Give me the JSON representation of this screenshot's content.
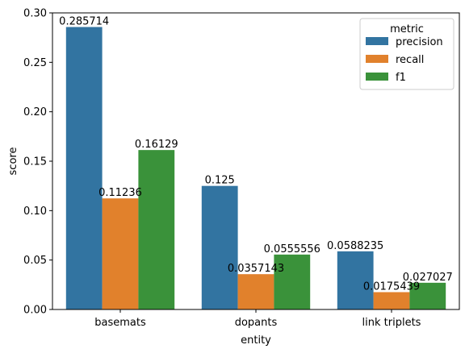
{
  "chart_data": {
    "type": "bar",
    "xlabel": "entity",
    "ylabel": "score",
    "ylim": [
      0,
      0.3
    ],
    "yticks": [
      "0.00",
      "0.05",
      "0.10",
      "0.15",
      "0.20",
      "0.25",
      "0.30"
    ],
    "yticks_values": [
      0,
      0.05,
      0.1,
      0.15,
      0.2,
      0.25,
      0.3
    ],
    "categories": [
      "basemats",
      "dopants",
      "link triplets"
    ],
    "legend": {
      "title": "metric",
      "placement": "top-right"
    },
    "grid": false,
    "series": [
      {
        "name": "precision",
        "color": "#3274a1",
        "values": [
          0.285714,
          0.125,
          0.0588235
        ],
        "labels": [
          "0.285714",
          "0.125",
          "0.0588235"
        ]
      },
      {
        "name": "recall",
        "color": "#e1812c",
        "values": [
          0.11236,
          0.0357143,
          0.0175439
        ],
        "labels": [
          "0.11236",
          "0.0357143",
          "0.0175439"
        ]
      },
      {
        "name": "f1",
        "color": "#3a923a",
        "values": [
          0.16129,
          0.0555556,
          0.027027
        ],
        "labels": [
          "0.16129",
          "0.0555556",
          "0.027027"
        ]
      }
    ]
  }
}
